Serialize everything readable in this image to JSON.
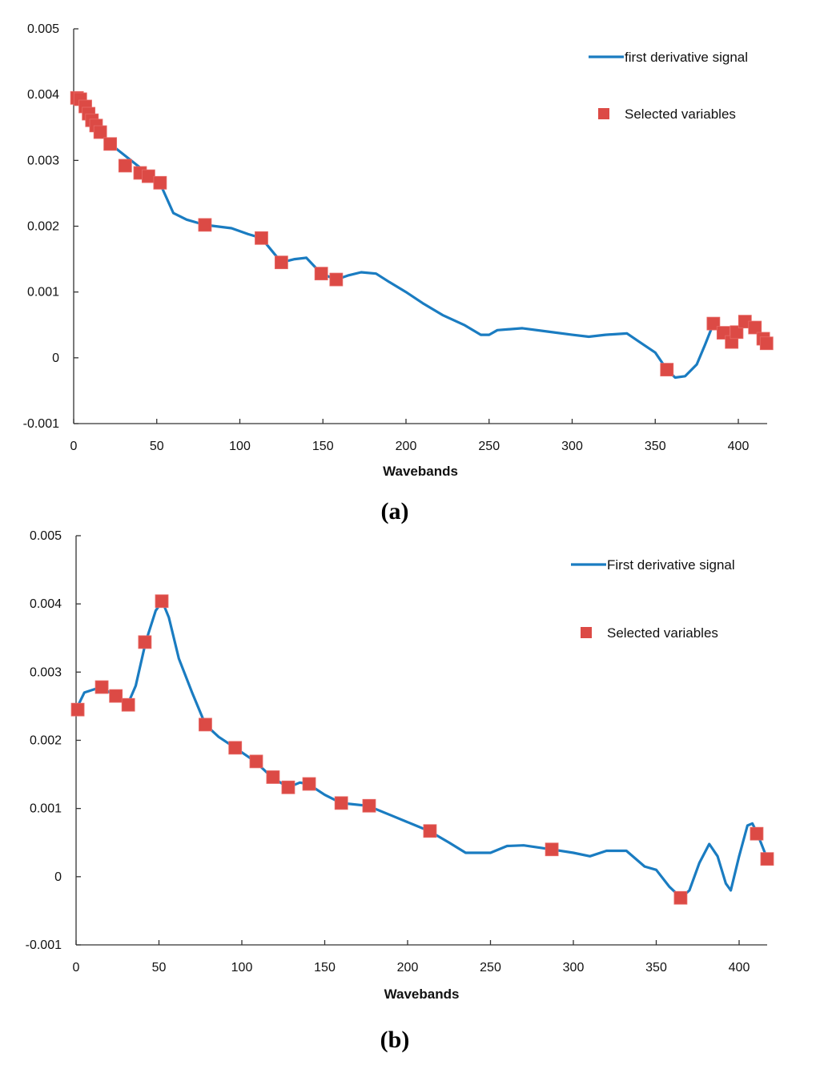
{
  "chart_data": [
    {
      "type": "line",
      "panel_label": "(a)",
      "xlabel": "Wavebands",
      "ylabel": "",
      "xlim": [
        0,
        417
      ],
      "ylim": [
        -0.001,
        0.005
      ],
      "x_ticks": [
        "0",
        "50",
        "100",
        "150",
        "200",
        "250",
        "300",
        "350",
        "400"
      ],
      "y_ticks": [
        "-0.001",
        "0",
        "0.001",
        "0.002",
        "0.003",
        "0.004",
        "0.005"
      ],
      "legend_position": "top-right",
      "colors": {
        "line": "#1a7cc1",
        "marker": "#dc4a45"
      },
      "series": [
        {
          "name": "first derivative signal",
          "kind": "line",
          "points": [
            [
              0,
              0.004
            ],
            [
              22,
              0.00325
            ],
            [
              52,
              0.00265
            ],
            [
              60,
              0.0022
            ],
            [
              68,
              0.0021
            ],
            [
              79,
              0.00202
            ],
            [
              95,
              0.00197
            ],
            [
              105,
              0.00188
            ],
            [
              113,
              0.00182
            ],
            [
              125,
              0.00145
            ],
            [
              133,
              0.0015
            ],
            [
              140,
              0.00152
            ],
            [
              149,
              0.00128
            ],
            [
              158,
              0.00119
            ],
            [
              165,
              0.00125
            ],
            [
              173,
              0.0013
            ],
            [
              182,
              0.00128
            ],
            [
              190,
              0.00115
            ],
            [
              200,
              0.001
            ],
            [
              210,
              0.00083
            ],
            [
              222,
              0.00065
            ],
            [
              235,
              0.0005
            ],
            [
              245,
              0.00035
            ],
            [
              250,
              0.00035
            ],
            [
              255,
              0.00042
            ],
            [
              270,
              0.00045
            ],
            [
              285,
              0.0004
            ],
            [
              300,
              0.00035
            ],
            [
              310,
              0.00032
            ],
            [
              320,
              0.00035
            ],
            [
              333,
              0.00037
            ],
            [
              340,
              0.00025
            ],
            [
              350,
              8e-05
            ],
            [
              357,
              -0.00018
            ],
            [
              362,
              -0.0003
            ],
            [
              368,
              -0.00028
            ],
            [
              375,
              -0.0001
            ],
            [
              380,
              0.0002
            ],
            [
              385,
              0.00052
            ],
            [
              392,
              0.0004
            ],
            [
              400,
              0.0004
            ],
            [
              405,
              0.00052
            ],
            [
              410,
              0.00046
            ],
            [
              417,
              0.00022
            ]
          ]
        },
        {
          "name": "Selected variables",
          "kind": "marker",
          "points": [
            [
              2,
              0.00395
            ],
            [
              4,
              0.00393
            ],
            [
              7,
              0.00382
            ],
            [
              9,
              0.00371
            ],
            [
              11,
              0.00361
            ],
            [
              13.5,
              0.00353
            ],
            [
              16,
              0.00343
            ],
            [
              22,
              0.00325
            ],
            [
              31,
              0.00292
            ],
            [
              40,
              0.00281
            ],
            [
              45,
              0.00276
            ],
            [
              52,
              0.00266
            ],
            [
              79,
              0.00202
            ],
            [
              113,
              0.00182
            ],
            [
              125,
              0.00145
            ],
            [
              149,
              0.00128
            ],
            [
              158,
              0.00119
            ],
            [
              357,
              -0.00018
            ],
            [
              385,
              0.00052
            ],
            [
              391,
              0.00038
            ],
            [
              396,
              0.00024
            ],
            [
              399,
              0.00039
            ],
            [
              404,
              0.00055
            ],
            [
              410,
              0.00046
            ],
            [
              415,
              0.00029
            ],
            [
              417,
              0.00022
            ]
          ]
        }
      ]
    },
    {
      "type": "line",
      "panel_label": "(b)",
      "xlabel": "Wavebands",
      "ylabel": "",
      "xlim": [
        0,
        417
      ],
      "ylim": [
        -0.001,
        0.005
      ],
      "x_ticks": [
        "0",
        "50",
        "100",
        "150",
        "200",
        "250",
        "300",
        "350",
        "400"
      ],
      "y_ticks": [
        "-0.001",
        "0",
        "0.001",
        "0.002",
        "0.003",
        "0.004",
        "0.005"
      ],
      "legend_position": "top-right",
      "colors": {
        "line": "#1a7cc1",
        "marker": "#dc4a45"
      },
      "series": [
        {
          "name": "First derivative signal",
          "kind": "line",
          "points": [
            [
              0,
              0.00245
            ],
            [
              5,
              0.0027
            ],
            [
              15,
              0.00278
            ],
            [
              24,
              0.00265
            ],
            [
              31,
              0.00252
            ],
            [
              36,
              0.0028
            ],
            [
              42,
              0.00344
            ],
            [
              48,
              0.0039
            ],
            [
              52,
              0.00404
            ],
            [
              56,
              0.0038
            ],
            [
              62,
              0.0032
            ],
            [
              70,
              0.0027
            ],
            [
              78,
              0.00223
            ],
            [
              86,
              0.00205
            ],
            [
              96,
              0.00189
            ],
            [
              108,
              0.00169
            ],
            [
              118,
              0.00146
            ],
            [
              128,
              0.00131
            ],
            [
              135,
              0.00138
            ],
            [
              140,
              0.00136
            ],
            [
              150,
              0.0012
            ],
            [
              160,
              0.00108
            ],
            [
              176,
              0.00104
            ],
            [
              190,
              0.0009
            ],
            [
              205,
              0.00075
            ],
            [
              213,
              0.00067
            ],
            [
              225,
              0.0005
            ],
            [
              235,
              0.00035
            ],
            [
              250,
              0.00035
            ],
            [
              260,
              0.00045
            ],
            [
              270,
              0.00046
            ],
            [
              287,
              0.0004
            ],
            [
              300,
              0.00035
            ],
            [
              310,
              0.0003
            ],
            [
              320,
              0.00038
            ],
            [
              332,
              0.00038
            ],
            [
              343,
              0.00015
            ],
            [
              350,
              0.0001
            ],
            [
              358,
              -0.00015
            ],
            [
              365,
              -0.00031
            ],
            [
              370,
              -0.0002
            ],
            [
              376,
              0.0002
            ],
            [
              382,
              0.00048
            ],
            [
              387,
              0.0003
            ],
            [
              392,
              -0.0001
            ],
            [
              395,
              -0.0002
            ],
            [
              400,
              0.0003
            ],
            [
              405,
              0.00075
            ],
            [
              408,
              0.00078
            ],
            [
              411,
              0.00063
            ],
            [
              417,
              0.00026
            ]
          ]
        },
        {
          "name": "Selected variables",
          "kind": "marker",
          "points": [
            [
              1,
              0.00245
            ],
            [
              15.5,
              0.00278
            ],
            [
              24,
              0.00265
            ],
            [
              31.5,
              0.00252
            ],
            [
              41.5,
              0.00344
            ],
            [
              51.7,
              0.00404
            ],
            [
              78,
              0.00223
            ],
            [
              96,
              0.00189
            ],
            [
              108.7,
              0.00169
            ],
            [
              118.8,
              0.00146
            ],
            [
              128,
              0.00131
            ],
            [
              140.6,
              0.00136
            ],
            [
              160,
              0.00108
            ],
            [
              176.8,
              0.00104
            ],
            [
              213.5,
              0.00067
            ],
            [
              287,
              0.0004
            ],
            [
              364.7,
              -0.00031
            ],
            [
              410.6,
              0.00063
            ],
            [
              416.9,
              0.00026
            ]
          ]
        }
      ]
    }
  ]
}
